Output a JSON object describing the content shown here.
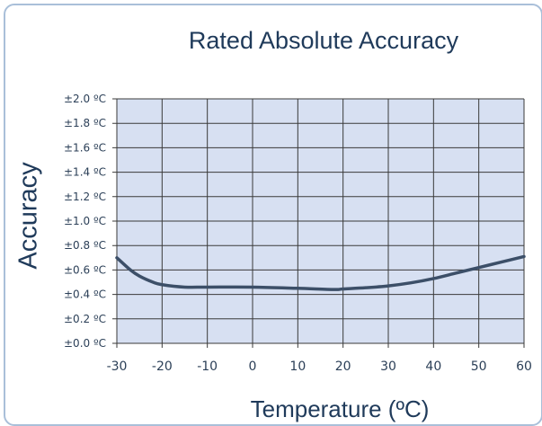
{
  "chart_data": {
    "type": "line",
    "title": "Rated Absolute Accuracy",
    "xlabel": "Temperature (ºC)",
    "ylabel": "Accuracy",
    "xlim": [
      -30,
      60
    ],
    "ylim": [
      0,
      2.0
    ],
    "x_ticks": [
      -30,
      -20,
      -10,
      0,
      10,
      20,
      30,
      40,
      50,
      60
    ],
    "x_tick_labels": [
      "-30",
      "-20",
      "-10",
      "0",
      "10",
      "20",
      "30",
      "40",
      "50",
      "60"
    ],
    "y_ticks": [
      0,
      0.2,
      0.4,
      0.6,
      0.8,
      1.0,
      1.2,
      1.4,
      1.6,
      1.8,
      2.0
    ],
    "y_tick_labels": [
      "±0.0 ºC",
      "±0.2 ºC",
      "±0.4 ºC",
      "±0.6 ºC",
      "±0.8 ºC",
      "±1.0 ºC",
      "±1.2 ºC",
      "±1.4 ºC",
      "±1.6 ºC",
      "±1.8 ºC",
      "±2.0 ºC"
    ],
    "grid": true,
    "series": [
      {
        "x": [
          -30,
          -27,
          -25,
          -22,
          -20,
          -15,
          -10,
          0,
          10,
          18,
          20,
          25,
          30,
          35,
          40,
          45,
          50,
          55,
          60
        ],
        "y": [
          0.7,
          0.6,
          0.55,
          0.5,
          0.48,
          0.46,
          0.46,
          0.46,
          0.45,
          0.44,
          0.445,
          0.455,
          0.47,
          0.495,
          0.53,
          0.575,
          0.62,
          0.665,
          0.71
        ]
      }
    ]
  },
  "colors": {
    "plot_background": "#d7e0f2",
    "grid": "#3a3a3a",
    "line": "#3c4f68",
    "text": "#1f3a5a",
    "frame": "#a9bfd9"
  }
}
